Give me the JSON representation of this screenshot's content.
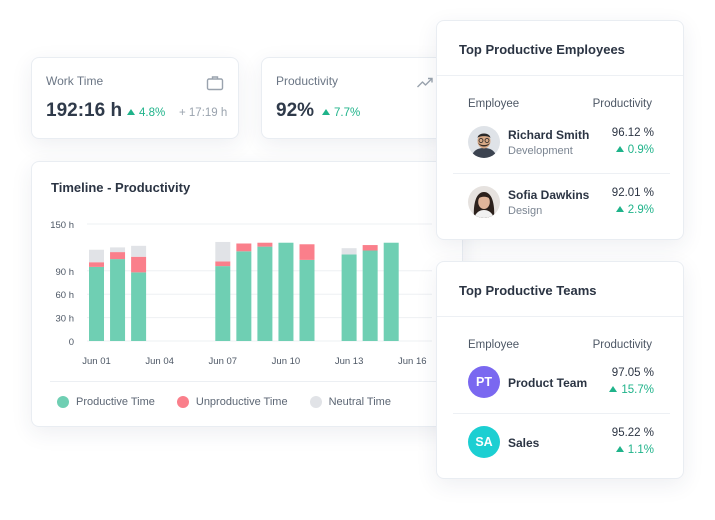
{
  "work_time": {
    "label": "Work Time",
    "value": "192:16 h",
    "delta": "4.8%",
    "extra": "+ 17:19 h",
    "icon": "briefcase-icon"
  },
  "productivity": {
    "label": "Productivity",
    "value": "92%",
    "delta": "7.7%",
    "icon": "trend-up-icon"
  },
  "timeline": {
    "title": "Timeline - Productivity",
    "legend": [
      {
        "label": "Productive Time",
        "color": "#6fcfb3"
      },
      {
        "label": "Unproductive Time",
        "color": "#fa7f8b"
      },
      {
        "label": "Neutral Time",
        "color": "#e1e3e7"
      }
    ]
  },
  "chart_data": {
    "type": "bar",
    "stacked": true,
    "title": "Timeline - Productivity",
    "x_tick_labels": [
      "Jun 01",
      "Jun 04",
      "Jun 07",
      "Jun 10",
      "Jun 13",
      "Jun 16"
    ],
    "y_tick_labels": [
      "0",
      "30 h",
      "60 h",
      "90 h",
      "150 h"
    ],
    "ylim": [
      0,
      150
    ],
    "grid": true,
    "legend_position": "bottom",
    "bars": [
      {
        "slot": 0,
        "productive": 95,
        "unproductive": 6,
        "neutral": 16
      },
      {
        "slot": 1,
        "productive": 105,
        "unproductive": 9,
        "neutral": 6
      },
      {
        "slot": 2,
        "productive": 88,
        "unproductive": 20,
        "neutral": 14
      },
      {
        "slot": 6,
        "productive": 96,
        "unproductive": 6,
        "neutral": 25
      },
      {
        "slot": 7,
        "productive": 115,
        "unproductive": 10,
        "neutral": 0
      },
      {
        "slot": 8,
        "productive": 121,
        "unproductive": 5,
        "neutral": 0
      },
      {
        "slot": 9,
        "productive": 126,
        "unproductive": 0,
        "neutral": 0
      },
      {
        "slot": 10,
        "productive": 104,
        "unproductive": 20,
        "neutral": 0
      },
      {
        "slot": 12,
        "productive": 111,
        "unproductive": 0,
        "neutral": 8
      },
      {
        "slot": 13,
        "productive": 116,
        "unproductive": 7,
        "neutral": 0
      },
      {
        "slot": 14,
        "productive": 126,
        "unproductive": 0,
        "neutral": 0
      }
    ],
    "colors": {
      "productive": "#6fcfb3",
      "unproductive": "#fa7f8b",
      "neutral": "#e1e3e7"
    }
  },
  "top_employees": {
    "title": "Top Productive Employees",
    "col_employee": "Employee",
    "col_productivity": "Productivity",
    "rows": [
      {
        "name": "Richard Smith",
        "dept": "Development",
        "value": "96.12 %",
        "delta": "0.9%"
      },
      {
        "name": "Sofia Dawkins",
        "dept": "Design",
        "value": "92.01 %",
        "delta": "2.9%"
      }
    ]
  },
  "top_teams": {
    "title": "Top Productive Teams",
    "col_employee": "Employee",
    "col_productivity": "Productivity",
    "rows": [
      {
        "initials": "PT",
        "name": "Product Team",
        "value": "97.05 %",
        "delta": "15.7%",
        "color": "#7a68f0"
      },
      {
        "initials": "SA",
        "name": "Sales",
        "value": "95.22 %",
        "delta": "1.1%",
        "color": "#1ccfd2"
      }
    ]
  }
}
